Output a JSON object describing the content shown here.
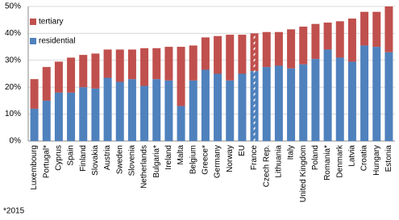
{
  "chart_data": {
    "type": "stacked_bar",
    "categories": [
      "Luxembourg",
      "Portugal*",
      "Cyprus",
      "Spain",
      "Finland",
      "Slovakia",
      "Austria",
      "Sweden",
      "Slovenia",
      "Netherlands",
      "Bulgaria*",
      "Ireland",
      "Malta",
      "Belgium",
      "Greece*",
      "Germany",
      "Norway",
      "EU",
      "France",
      "Czech Rep.",
      "Lithuania",
      "Italy",
      "United Kingdom",
      "Poland",
      "Romania*",
      "Denmark",
      "Latvia",
      "Croatia",
      "Hungary",
      "Estonia"
    ],
    "series": [
      {
        "name": "residential",
        "color": "#4f81bd",
        "values": [
          12,
          15,
          18,
          18,
          20,
          19.5,
          23.5,
          22,
          23,
          20.5,
          23,
          22.5,
          13,
          22.5,
          26.5,
          25,
          22.5,
          25,
          26,
          27.5,
          28,
          27,
          28.5,
          30.5,
          34,
          31,
          29.5,
          35.5,
          35,
          33
        ]
      },
      {
        "name": "tertiary",
        "color": "#c0504d",
        "values": [
          11,
          12.5,
          11.5,
          13,
          12,
          13,
          10.5,
          12,
          11,
          14,
          11.5,
          12.5,
          22,
          13,
          12,
          14,
          17,
          14.5,
          14,
          13,
          12.5,
          14.5,
          14,
          13,
          10,
          13.5,
          16,
          12.5,
          13,
          17
        ]
      }
    ],
    "highlight": "France",
    "ylim": [
      0,
      50
    ],
    "yticks": [
      {
        "value": 0,
        "label": "0%"
      },
      {
        "value": 10,
        "label": "10%"
      },
      {
        "value": 20,
        "label": "20%"
      },
      {
        "value": 30,
        "label": "30%"
      },
      {
        "value": 40,
        "label": "40%"
      },
      {
        "value": 50,
        "label": "50%"
      }
    ],
    "grid": true,
    "footnote": "*2015"
  }
}
